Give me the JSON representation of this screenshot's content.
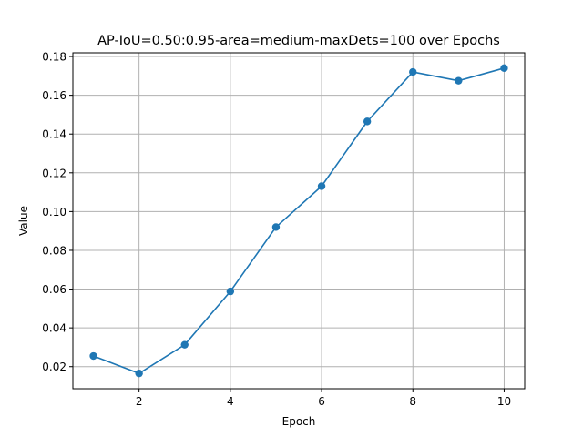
{
  "chart_data": {
    "type": "line",
    "title": "AP-IoU=0.50:0.95-area=medium-maxDets=100 over Epochs",
    "xlabel": "Epoch",
    "ylabel": "Value",
    "x": [
      1,
      2,
      3,
      4,
      5,
      6,
      7,
      8,
      9,
      10
    ],
    "series": [
      {
        "values": [
          0.0255,
          0.0165,
          0.0313,
          0.0588,
          0.092,
          0.1131,
          0.1465,
          0.172,
          0.1675,
          0.174
        ]
      }
    ],
    "xlim": [
      0.55,
      10.45
    ],
    "ylim": [
      0.0086,
      0.1819
    ],
    "xticks": [
      2,
      4,
      6,
      8,
      10
    ],
    "xtick_labels": [
      "2",
      "4",
      "6",
      "8",
      "10"
    ],
    "yticks": [
      0.02,
      0.04,
      0.06,
      0.08,
      0.1,
      0.12,
      0.14,
      0.16,
      0.18
    ],
    "ytick_labels": [
      "0.02",
      "0.04",
      "0.06",
      "0.08",
      "0.10",
      "0.12",
      "0.14",
      "0.16",
      "0.18"
    ],
    "grid": true,
    "markers": true,
    "colors": {
      "line": "#1f77b4",
      "grid": "#b0b0b0",
      "axes": "#000000"
    }
  }
}
